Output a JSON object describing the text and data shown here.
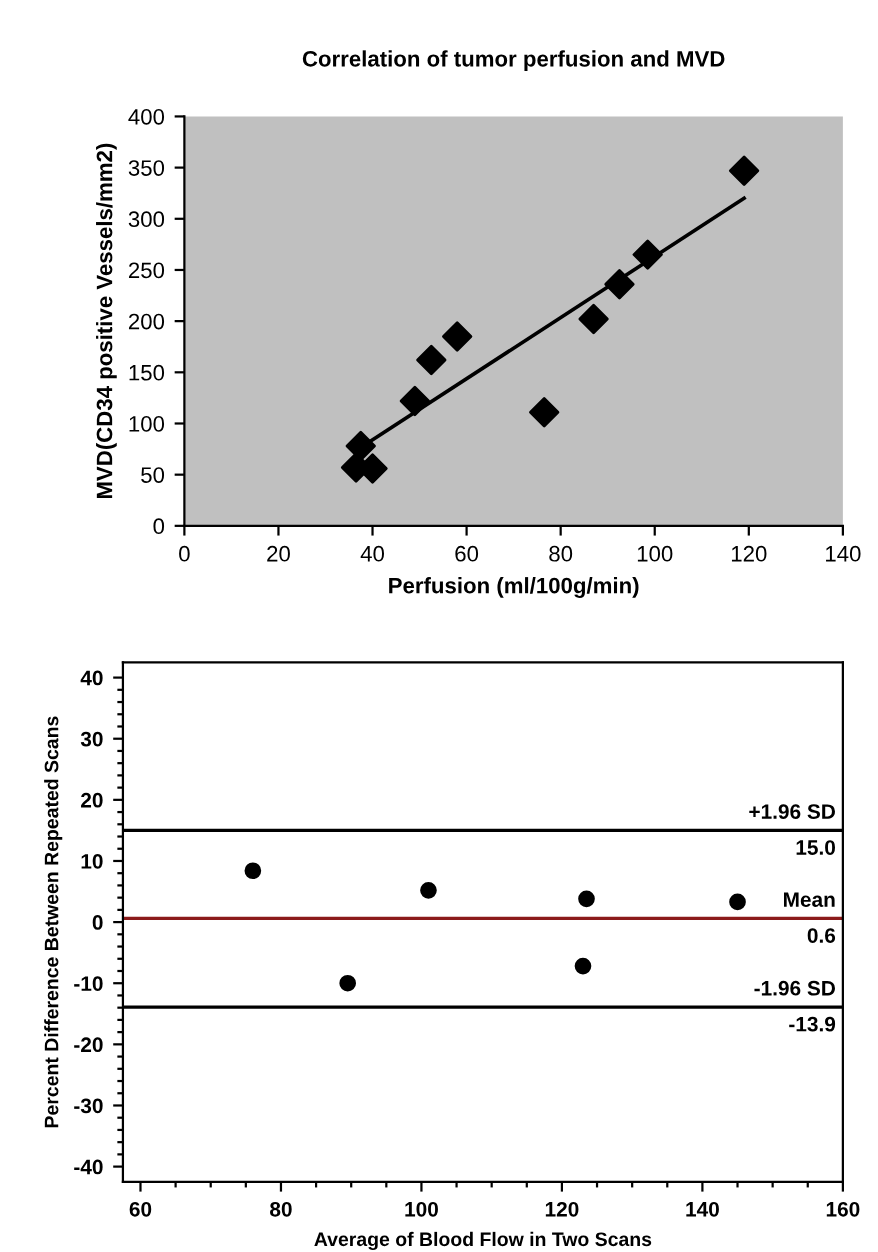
{
  "chart_data": [
    {
      "type": "scatter",
      "title": "Correlation of tumor perfusion and MVD",
      "xlabel": "Perfusion (ml/100g/min)",
      "ylabel": "MVD(CD34 positive Vessels/mm2)",
      "xlim": [
        0,
        140
      ],
      "ylim": [
        0,
        400
      ],
      "xticks": [
        0,
        20,
        40,
        60,
        80,
        100,
        120,
        140
      ],
      "yticks": [
        0,
        50,
        100,
        150,
        200,
        250,
        300,
        350,
        400
      ],
      "grid": false,
      "legend": false,
      "series": [
        {
          "type": "scatter",
          "color": "#000000",
          "marker": "diamond",
          "x": [
            36.5,
            37.5,
            40,
            49,
            52.5,
            58,
            76.5,
            87,
            92.5,
            98.5,
            119
          ],
          "values": [
            57,
            78,
            56,
            122,
            162,
            185,
            111,
            202,
            236,
            265,
            347
          ]
        },
        {
          "type": "line",
          "color": "#000000",
          "marker": "none",
          "line_style": "solid",
          "x": [
            37,
            119
          ],
          "values": [
            75,
            320
          ]
        }
      ]
    },
    {
      "type": "scatter",
      "xlabel": "Average of Blood Flow in Two Scans",
      "ylabel": "Percent Difference Between Repeated Scans",
      "xlim": [
        57.5,
        160
      ],
      "ylim": [
        -42.5,
        42.5
      ],
      "xticks": [
        60,
        {
          "value": 65,
          "label": null
        },
        {
          "value": 70,
          "label": null
        },
        {
          "value": 75,
          "label": null
        },
        80,
        {
          "value": 85,
          "label": null
        },
        {
          "value": 90,
          "label": null
        },
        {
          "value": 95,
          "label": null
        },
        100,
        {
          "value": 105,
          "label": null
        },
        {
          "value": 110,
          "label": null
        },
        {
          "value": 115,
          "label": null
        },
        120,
        {
          "value": 125,
          "label": null
        },
        {
          "value": 130,
          "label": null
        },
        {
          "value": 135,
          "label": null
        },
        140,
        {
          "value": 145,
          "label": null
        },
        {
          "value": 150,
          "label": null
        },
        {
          "value": 155,
          "label": null
        },
        160
      ],
      "yticks": [
        -40,
        {
          "value": -38,
          "label": null
        },
        {
          "value": -36,
          "label": null
        },
        {
          "value": -34,
          "label": null
        },
        {
          "value": -32,
          "label": null
        },
        -30,
        {
          "value": -28,
          "label": null
        },
        {
          "value": -26,
          "label": null
        },
        {
          "value": -24,
          "label": null
        },
        {
          "value": -22,
          "label": null
        },
        -20,
        {
          "value": -18,
          "label": null
        },
        {
          "value": -16,
          "label": null
        },
        {
          "value": -14,
          "label": null
        },
        {
          "value": -12,
          "label": null
        },
        -10,
        {
          "value": -8,
          "label": null
        },
        {
          "value": -6,
          "label": null
        },
        {
          "value": -4,
          "label": null
        },
        {
          "value": -2,
          "label": null
        },
        0,
        {
          "value": 2,
          "label": null
        },
        {
          "value": 4,
          "label": null
        },
        {
          "value": 6,
          "label": null
        },
        {
          "value": 8,
          "label": null
        },
        10,
        {
          "value": 12,
          "label": null
        },
        {
          "value": 14,
          "label": null
        },
        {
          "value": 16,
          "label": null
        },
        {
          "value": 18,
          "label": null
        },
        20,
        {
          "value": 22,
          "label": null
        },
        {
          "value": 24,
          "label": null
        },
        {
          "value": 26,
          "label": null
        },
        {
          "value": 28,
          "label": null
        },
        30,
        {
          "value": 32,
          "label": null
        },
        {
          "value": 34,
          "label": null
        },
        {
          "value": 36,
          "label": null
        },
        {
          "value": 38,
          "label": null
        },
        40
      ],
      "grid": false,
      "legend": false,
      "marker": "circle",
      "series": [
        {
          "color": "#000000",
          "x": [
            76,
            89.5,
            101,
            123.5,
            145,
            123
          ],
          "values": [
            8.4,
            -10,
            5.2,
            3.8,
            3.3,
            -7.2
          ]
        }
      ],
      "ref_lines": [
        {
          "axis": "y",
          "value": 15.0,
          "label": "+1.96 SD",
          "color": "#000000",
          "line_style": "solid"
        },
        {
          "axis": "y",
          "value": 0.6,
          "label": "Mean",
          "color": "#8b1a1a",
          "line_style": "solid"
        },
        {
          "axis": "y",
          "value": -13.9,
          "label": "-1.96 SD",
          "color": "#000000",
          "line_style": "solid"
        }
      ],
      "annotations": [
        {
          "text": "15.0",
          "y": 15.0
        },
        {
          "text": "0.6",
          "y": 0.6
        },
        {
          "text": "-13.9",
          "y": -13.9
        }
      ]
    }
  ]
}
